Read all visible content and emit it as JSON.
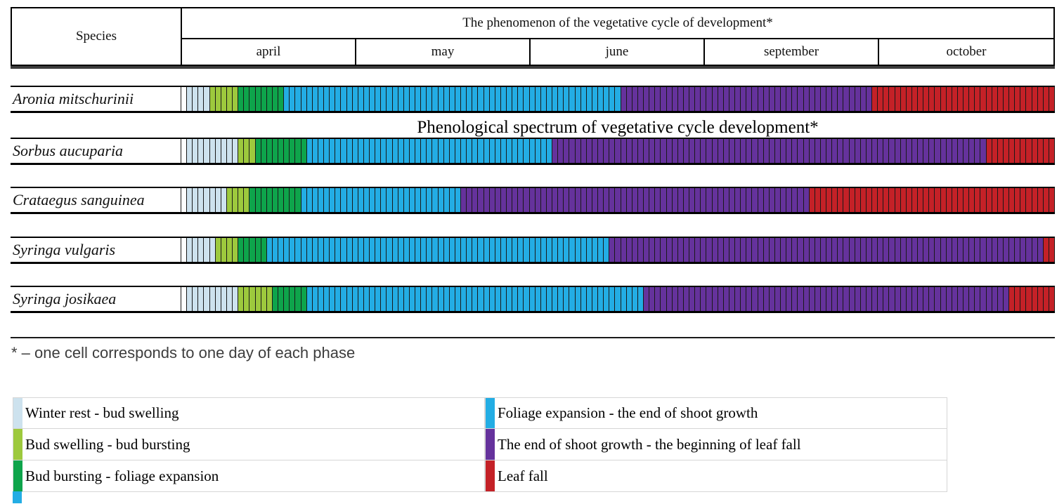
{
  "header": {
    "species_label": "Species",
    "phenomenon_label": "The phenomenon of the vegetative cycle of development*",
    "months": [
      "april",
      "may",
      "june",
      "september",
      "october"
    ]
  },
  "title": "Phenological spectrum of vegetative cycle development*",
  "footnote": "* – one cell corresponds to one day of each phase",
  "colors": {
    "winter_rest": "#cde2ee",
    "bud_swelling": "#9dc93d",
    "bud_bursting": "#0ea44b",
    "foliage_expansion": "#23ade4",
    "end_shoot_growth": "#65329c",
    "leaf_fall": "#c42127",
    "cell_border": "#191919"
  },
  "chart_data": {
    "type": "bar",
    "orientation": "horizontal-stacked",
    "title": "Phenological spectrum of vegetative cycle development*",
    "unit": "days (one cell = one day of each phase)",
    "x_axis_months": [
      "april",
      "may",
      "june",
      "september",
      "october"
    ],
    "total_days_per_row": 152,
    "categories": [
      "Aronia mitschurinii",
      "Sorbus aucuparia",
      "Crataegus sanguinea",
      "Syringa vulgaris",
      "Syringa josikaea"
    ],
    "series": [
      {
        "name": "Winter rest -  bud swelling",
        "color": "#cde2ee",
        "values": [
          4,
          9,
          7,
          5,
          9
        ]
      },
      {
        "name": "Bud swelling - bud bursting",
        "color": "#9dc93d",
        "values": [
          5,
          3,
          4,
          4,
          6
        ]
      },
      {
        "name": "Bud bursting - foliage expansion",
        "color": "#0ea44b",
        "values": [
          8,
          9,
          9,
          5,
          6
        ]
      },
      {
        "name": "Foliage expansion - the end of shoot growth",
        "color": "#23ade4",
        "values": [
          59,
          43,
          28,
          60,
          59
        ]
      },
      {
        "name": "The end of shoot growth - the beginning of leaf fall",
        "color": "#65329c",
        "values": [
          44,
          76,
          61,
          76,
          64
        ]
      },
      {
        "name": "Leaf fall",
        "color": "#c42127",
        "values": [
          32,
          12,
          43,
          2,
          8
        ]
      }
    ],
    "legend_position": "bottom, two columns"
  },
  "legend": {
    "left": [
      {
        "label": "Winter rest -  bud swelling",
        "color": "#cde2ee"
      },
      {
        "label": "Bud swelling - bud bursting",
        "color": "#9dc93d"
      },
      {
        "label": "Bud bursting - foliage expansion",
        "color": "#0ea44b"
      }
    ],
    "right": [
      {
        "label": "Foliage expansion - the end of shoot growth",
        "color": "#23ade4"
      },
      {
        "label": "The end of shoot growth - the beginning of leaf fall",
        "color": "#65329c"
      },
      {
        "label": "Leaf fall",
        "color": "#c42127"
      }
    ],
    "overflow_swatch_color": "#23ade4"
  }
}
